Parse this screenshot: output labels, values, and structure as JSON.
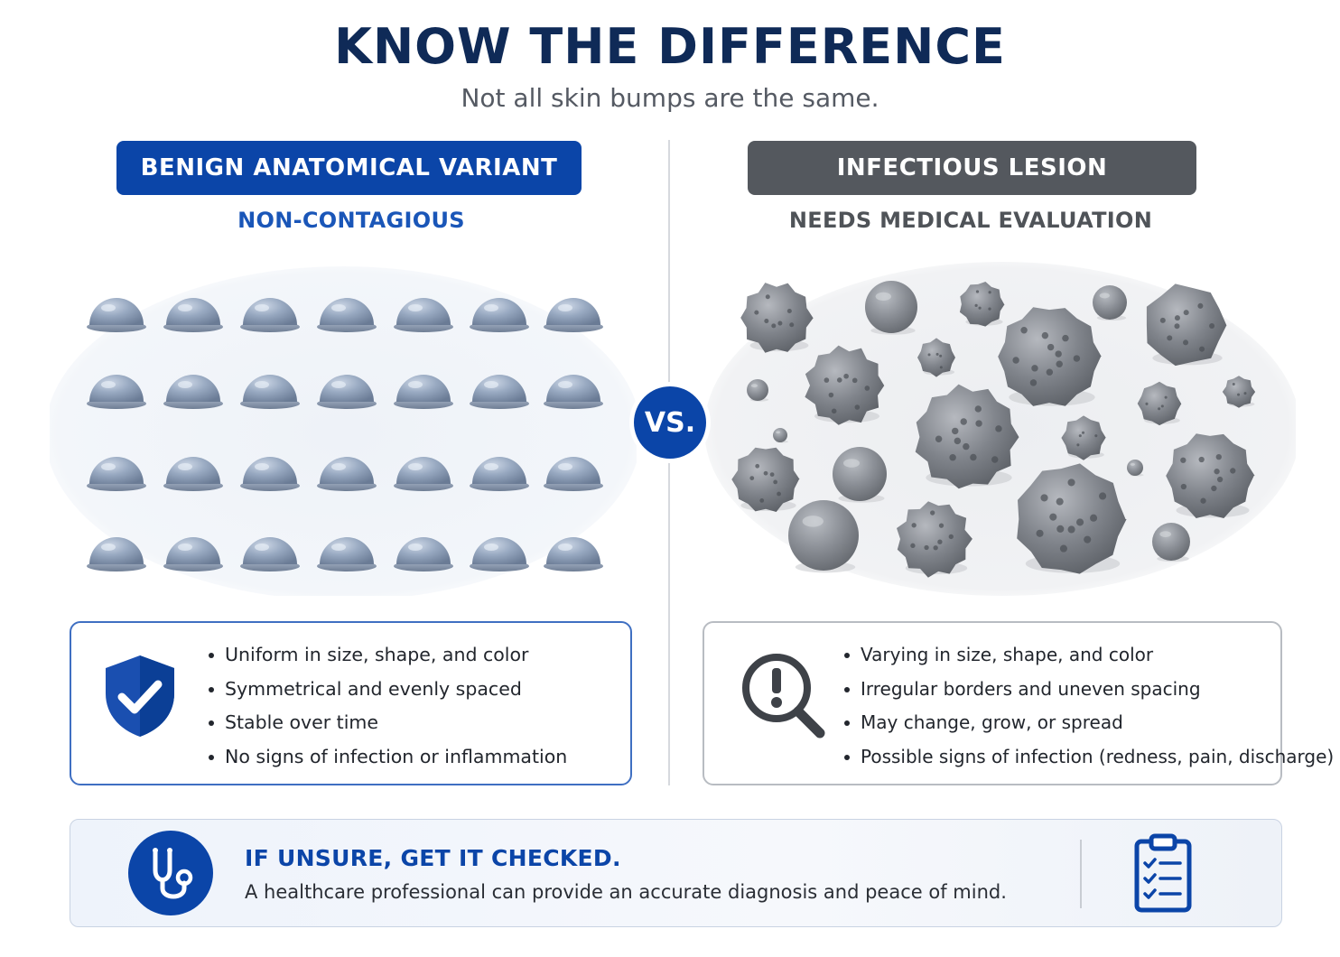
{
  "header": {
    "title": "KNOW THE DIFFERENCE",
    "subtitle": "Not all skin bumps are the same."
  },
  "benign": {
    "label": "BENIGN ANATOMICAL VARIANT",
    "sublabel": "NON-CONTAGIOUS",
    "color": "#0b45a8",
    "icon": "shield-check-icon",
    "bullets": [
      "Uniform in size, shape, and color",
      "Symmetrical and evenly spaced",
      "Stable over time",
      "No signs of infection or inflammation"
    ]
  },
  "versus": {
    "label": "VS."
  },
  "infectious": {
    "label": "INFECTIOUS LESION",
    "sublabel": "NEEDS MEDICAL EVALUATION",
    "color": "#54585e",
    "icon": "magnifier-exclamation-icon",
    "bullets": [
      "Varying in size, shape, and color",
      "Irregular borders and uneven spacing",
      "May change, grow, or spread",
      "Possible signs of infection (redness, pain, discharge)"
    ]
  },
  "banner": {
    "title": "IF UNSURE, GET IT CHECKED.",
    "text": "A healthcare professional can provide an accurate diagnosis and peace of mind.",
    "icons": [
      "stethoscope-icon",
      "clipboard-checklist-icon"
    ]
  }
}
